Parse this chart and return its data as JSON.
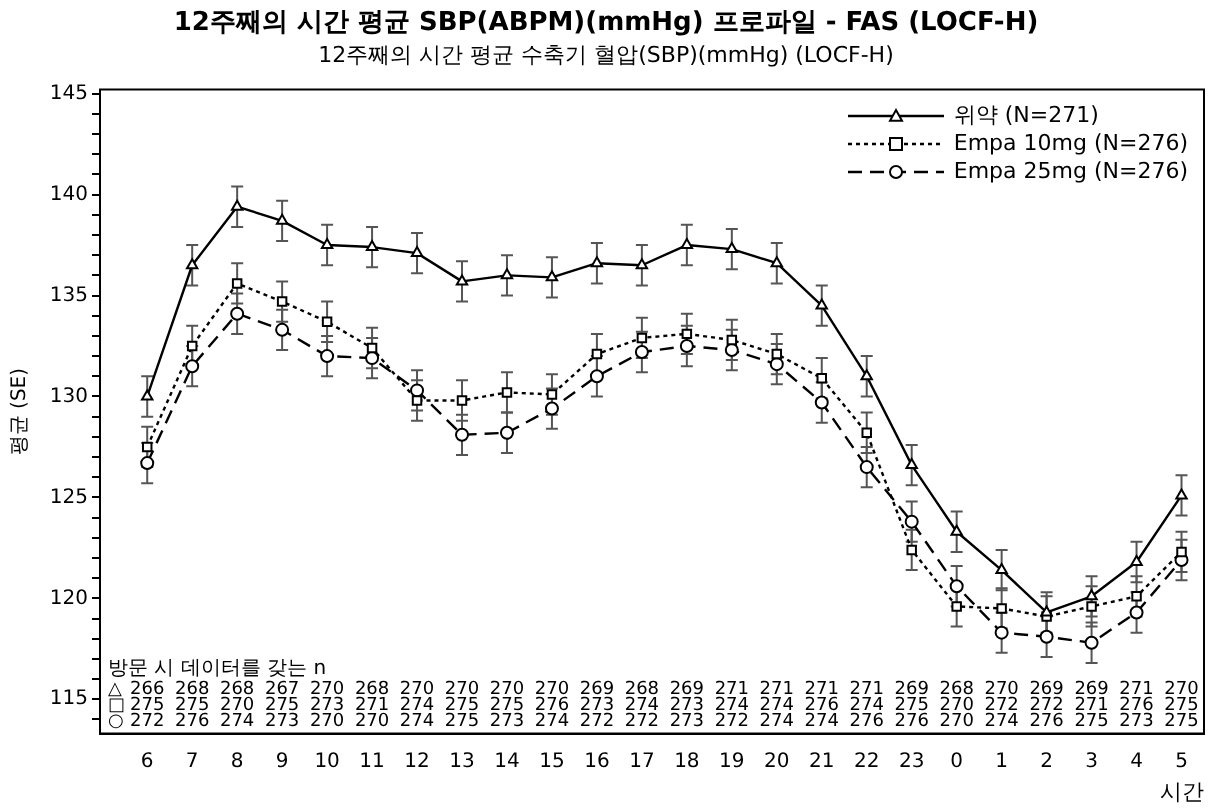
{
  "chart_data": {
    "type": "line",
    "title": "12주째의 시간 평균 SBP(ABPM)(mmHg) 프로파일 - FAS (LOCF-H)",
    "subtitle": "12주째의 시간 평균 수축기 혈압(SBP)(mmHg) (LOCF-H)",
    "xlabel": "시간",
    "ylabel": "평균 (SE)",
    "categories": [
      "6",
      "7",
      "8",
      "9",
      "10",
      "11",
      "12",
      "13",
      "14",
      "15",
      "16",
      "17",
      "18",
      "19",
      "20",
      "21",
      "22",
      "23",
      "0",
      "1",
      "2",
      "3",
      "4",
      "5"
    ],
    "series": [
      {
        "name": "위약 (N=271)",
        "color": "#000000",
        "marker": "triangle",
        "line_style": "solid",
        "values": [
          130.0,
          136.5,
          139.4,
          138.7,
          137.5,
          137.4,
          137.1,
          135.7,
          136.0,
          135.9,
          136.6,
          136.5,
          137.5,
          137.3,
          136.6,
          134.5,
          131.0,
          126.6,
          123.3,
          121.4,
          119.3,
          120.1,
          121.8,
          125.1
        ],
        "errors": [
          1,
          1,
          1,
          1,
          1,
          1,
          1,
          1,
          1,
          1,
          1,
          1,
          1,
          1,
          1,
          1,
          1,
          1,
          1,
          1,
          1,
          1,
          1,
          1
        ]
      },
      {
        "name": "Empa 10mg (N=276)",
        "color": "#000000",
        "marker": "square",
        "line_style": "dotted",
        "values": [
          127.5,
          132.5,
          135.6,
          134.7,
          133.7,
          132.4,
          129.8,
          129.8,
          130.2,
          130.1,
          132.1,
          132.9,
          133.1,
          132.8,
          132.1,
          130.9,
          128.2,
          122.4,
          119.6,
          119.5,
          119.1,
          119.6,
          120.1,
          122.3
        ],
        "errors": [
          1,
          1,
          1,
          1,
          1,
          1,
          1,
          1,
          1,
          1,
          1,
          1,
          1,
          1,
          1,
          1,
          1,
          1,
          1,
          1,
          1,
          1,
          1,
          1
        ]
      },
      {
        "name": "Empa 25mg (N=276)",
        "color": "#000000",
        "marker": "circle",
        "line_style": "dashed",
        "values": [
          126.7,
          131.5,
          134.1,
          133.3,
          132.0,
          131.9,
          130.3,
          128.1,
          128.2,
          129.4,
          131.0,
          132.2,
          132.5,
          132.3,
          131.6,
          129.7,
          126.5,
          123.8,
          120.6,
          118.3,
          118.1,
          117.8,
          119.3,
          121.9
        ],
        "errors": [
          1,
          1,
          1,
          1,
          1,
          1,
          1,
          1,
          1,
          1,
          1,
          1,
          1,
          1,
          1,
          1,
          1,
          1,
          1,
          1,
          1,
          1,
          1,
          1
        ]
      }
    ],
    "ylim": [
      113.3,
      145.2
    ],
    "yticks": [
      {
        "value": 114,
        "label": null
      },
      115,
      {
        "value": 116,
        "label": null
      },
      {
        "value": 117,
        "label": null
      },
      {
        "value": 118,
        "label": null
      },
      {
        "value": 119,
        "label": null
      },
      120,
      {
        "value": 121,
        "label": null
      },
      {
        "value": 122,
        "label": null
      },
      {
        "value": 123,
        "label": null
      },
      {
        "value": 124,
        "label": null
      },
      125,
      {
        "value": 126,
        "label": null
      },
      {
        "value": 127,
        "label": null
      },
      {
        "value": 128,
        "label": null
      },
      {
        "value": 129,
        "label": null
      },
      130,
      {
        "value": 131,
        "label": null
      },
      {
        "value": 132,
        "label": null
      },
      {
        "value": 133,
        "label": null
      },
      {
        "value": 134,
        "label": null
      },
      135,
      {
        "value": 136,
        "label": null
      },
      {
        "value": 137,
        "label": null
      },
      {
        "value": 138,
        "label": null
      },
      {
        "value": 139,
        "label": null
      },
      140,
      {
        "value": 141,
        "label": null
      },
      {
        "value": 142,
        "label": null
      },
      {
        "value": 143,
        "label": null
      },
      {
        "value": 144,
        "label": null
      },
      145
    ],
    "grid": false,
    "legend": "top right",
    "annotations": [
      "방문 시 데이터를 갖는 n",
      "△ 266 268 268 267 270 268 270 270 270 270 269 268 269 271 271 271 271 269 268 270 269 269 271 270",
      "□ 275 275 270 275 273 271 274 275 275 276 273 274 273 274 274 276 274 275 270 272 272 271 276 275",
      "○ 272 276 274 273 270 270 274 275 273 274 272 272 273 272 274 274 276 276 270 274 276 275 273 275"
    ]
  }
}
